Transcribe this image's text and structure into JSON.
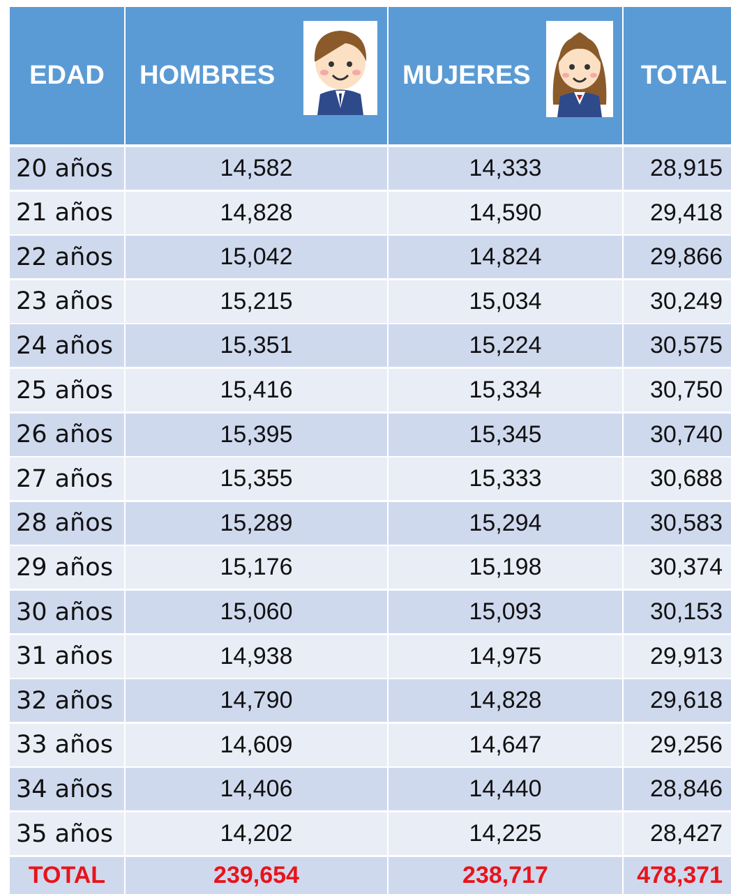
{
  "header": [
    "EDAD",
    "HOMBRES",
    "MUJERES",
    "TOTAL"
  ],
  "rows": [
    [
      "20 años",
      "14,582",
      "14,333",
      "28,915"
    ],
    [
      "21 años",
      "14,828",
      "14,590",
      "29,418"
    ],
    [
      "22 años",
      "15,042",
      "14,824",
      "29,866"
    ],
    [
      "23 años",
      "15,215",
      "15,034",
      "30,249"
    ],
    [
      "24 años",
      "15,351",
      "15,224",
      "30,575"
    ],
    [
      "25 años",
      "15,416",
      "15,334",
      "30,750"
    ],
    [
      "26 años",
      "15,395",
      "15,345",
      "30,740"
    ],
    [
      "27 años",
      "15,355",
      "15,333",
      "30,688"
    ],
    [
      "28 años",
      "15,289",
      "15,294",
      "30,583"
    ],
    [
      "29 años",
      "15,176",
      "15,198",
      "30,374"
    ],
    [
      "30 años",
      "15,060",
      "15,093",
      "30,153"
    ],
    [
      "31 años",
      "14,938",
      "14,975",
      "29,913"
    ],
    [
      "32 años",
      "14,790",
      "14,828",
      "29,618"
    ],
    [
      "33 años",
      "14,609",
      "14,647",
      "29,256"
    ],
    [
      "34 años",
      "14,406",
      "14,440",
      "28,846"
    ],
    [
      "35 años",
      "14,202",
      "14,225",
      "28,427"
    ]
  ],
  "total": [
    "TOTAL",
    "239,654",
    "238,717",
    "478,371"
  ]
}
